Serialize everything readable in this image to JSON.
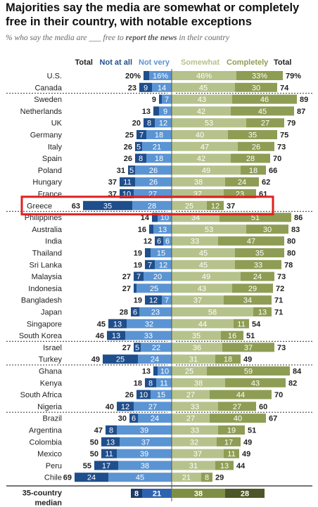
{
  "title": "Majorities say the media are somewhat or completely free in their country, with notable exceptions",
  "subtitle_pre": "% who say the media are ___ free to ",
  "subtitle_bold": "report the news",
  "subtitle_post": " in their country",
  "colors": {
    "not_at_all": "#1f4e8c",
    "not_very": "#5b94d3",
    "somewhat": "#b6c28c",
    "completely": "#8e9d54",
    "median_not_at_all": "#1b3a66",
    "median_not_very": "#2f63b0",
    "median_somewhat": "#7f8e45",
    "median_completely": "#4d5628",
    "highlight": "#e02020"
  },
  "chart_data": {
    "type": "bar",
    "headers": {
      "total_left": "Total",
      "not_at_all": "Not at all",
      "not_very": "Not very",
      "somewhat": "Somewhat",
      "completely": "Completely",
      "total_right": "Total"
    },
    "groups": [
      [
        {
          "country": "U.S.",
          "neg_total": "20%",
          "not_at_all": 4,
          "not_very": 16,
          "somewhat": 46,
          "completely": 33,
          "pos_total": "79%",
          "na_label": "",
          "nv_label": "16%",
          "sw_label": "46%",
          "cp_label": "33%"
        },
        {
          "country": "Canada",
          "neg_total": "23",
          "not_at_all": 9,
          "not_very": 14,
          "somewhat": 45,
          "completely": 30,
          "pos_total": "74",
          "na_label": "9",
          "nv_label": "14",
          "sw_label": "45",
          "cp_label": "30"
        }
      ],
      [
        {
          "country": "Sweden",
          "neg_total": "9",
          "not_at_all": 2,
          "not_very": 7,
          "somewhat": 43,
          "completely": 46,
          "pos_total": "89",
          "na_label": "",
          "nv_label": "7",
          "sw_label": "43",
          "cp_label": "46"
        },
        {
          "country": "Netherlands",
          "neg_total": "13",
          "not_at_all": 4,
          "not_very": 9,
          "somewhat": 42,
          "completely": 45,
          "pos_total": "87",
          "na_label": "",
          "nv_label": "9",
          "sw_label": "42",
          "cp_label": "45"
        },
        {
          "country": "UK",
          "neg_total": "20",
          "not_at_all": 8,
          "not_very": 12,
          "somewhat": 53,
          "completely": 27,
          "pos_total": "79",
          "na_label": "8",
          "nv_label": "12",
          "sw_label": "53",
          "cp_label": "27"
        },
        {
          "country": "Germany",
          "neg_total": "25",
          "not_at_all": 7,
          "not_very": 18,
          "somewhat": 40,
          "completely": 35,
          "pos_total": "75",
          "na_label": "7",
          "nv_label": "18",
          "sw_label": "40",
          "cp_label": "35"
        },
        {
          "country": "Italy",
          "neg_total": "26",
          "not_at_all": 5,
          "not_very": 21,
          "somewhat": 47,
          "completely": 26,
          "pos_total": "73",
          "na_label": "5",
          "nv_label": "21",
          "sw_label": "47",
          "cp_label": "26"
        },
        {
          "country": "Spain",
          "neg_total": "26",
          "not_at_all": 8,
          "not_very": 18,
          "somewhat": 42,
          "completely": 28,
          "pos_total": "70",
          "na_label": "8",
          "nv_label": "18",
          "sw_label": "42",
          "cp_label": "28"
        },
        {
          "country": "Poland",
          "neg_total": "31",
          "not_at_all": 5,
          "not_very": 26,
          "somewhat": 49,
          "completely": 18,
          "pos_total": "66",
          "na_label": "5",
          "nv_label": "26",
          "sw_label": "49",
          "cp_label": "18"
        },
        {
          "country": "Hungary",
          "neg_total": "37",
          "not_at_all": 11,
          "not_very": 26,
          "somewhat": 38,
          "completely": 24,
          "pos_total": "62",
          "na_label": "11",
          "nv_label": "26",
          "sw_label": "38",
          "cp_label": "24"
        },
        {
          "country": "France",
          "neg_total": "37",
          "not_at_all": 10,
          "not_very": 27,
          "somewhat": 37,
          "completely": 23,
          "pos_total": "61",
          "na_label": "10",
          "nv_label": "27",
          "sw_label": "37",
          "cp_label": "23"
        },
        {
          "country": "Greece",
          "neg_total": "63",
          "not_at_all": 35,
          "not_very": 28,
          "somewhat": 25,
          "completely": 12,
          "pos_total": "37",
          "na_label": "35",
          "nv_label": "28",
          "sw_label": "25",
          "cp_label": "12",
          "highlight": true
        }
      ],
      [
        {
          "country": "Philippines",
          "neg_total": "14",
          "not_at_all": 4,
          "not_very": 10,
          "somewhat": 34,
          "completely": 51,
          "pos_total": "86",
          "na_label": "",
          "nv_label": "10",
          "sw_label": "34",
          "cp_label": "51"
        },
        {
          "country": "Australia",
          "neg_total": "16",
          "not_at_all": 3,
          "not_very": 13,
          "somewhat": 53,
          "completely": 30,
          "pos_total": "83",
          "na_label": "",
          "nv_label": "13",
          "sw_label": "53",
          "cp_label": "30"
        },
        {
          "country": "India",
          "neg_total": "12",
          "not_at_all": 6,
          "not_very": 6,
          "somewhat": 33,
          "completely": 47,
          "pos_total": "80",
          "na_label": "6",
          "nv_label": "6",
          "sw_label": "33",
          "cp_label": "47"
        },
        {
          "country": "Thailand",
          "neg_total": "19",
          "not_at_all": 4,
          "not_very": 15,
          "somewhat": 45,
          "completely": 35,
          "pos_total": "80",
          "na_label": "",
          "nv_label": "15",
          "sw_label": "45",
          "cp_label": "35"
        },
        {
          "country": "Sri Lanka",
          "neg_total": "19",
          "not_at_all": 7,
          "not_very": 12,
          "somewhat": 45,
          "completely": 33,
          "pos_total": "78",
          "na_label": "7",
          "nv_label": "12",
          "sw_label": "45",
          "cp_label": "33"
        },
        {
          "country": "Malaysia",
          "neg_total": "27",
          "not_at_all": 7,
          "not_very": 20,
          "somewhat": 49,
          "completely": 24,
          "pos_total": "73",
          "na_label": "7",
          "nv_label": "20",
          "sw_label": "49",
          "cp_label": "24"
        },
        {
          "country": "Indonesia",
          "neg_total": "27",
          "not_at_all": 2,
          "not_very": 25,
          "somewhat": 43,
          "completely": 29,
          "pos_total": "72",
          "na_label": "",
          "nv_label": "25",
          "sw_label": "43",
          "cp_label": "29"
        },
        {
          "country": "Bangladesh",
          "neg_total": "19",
          "not_at_all": 12,
          "not_very": 7,
          "somewhat": 37,
          "completely": 34,
          "pos_total": "71",
          "na_label": "12",
          "nv_label": "7",
          "sw_label": "37",
          "cp_label": "34"
        },
        {
          "country": "Japan",
          "neg_total": "28",
          "not_at_all": 6,
          "not_very": 23,
          "somewhat": 58,
          "completely": 13,
          "pos_total": "71",
          "na_label": "6",
          "nv_label": "23",
          "sw_label": "58",
          "cp_label": "13"
        },
        {
          "country": "Singapore",
          "neg_total": "45",
          "not_at_all": 13,
          "not_very": 32,
          "somewhat": 44,
          "completely": 11,
          "pos_total": "54",
          "na_label": "13",
          "nv_label": "32",
          "sw_label": "44",
          "cp_label": "11"
        },
        {
          "country": "South Korea",
          "neg_total": "46",
          "not_at_all": 13,
          "not_very": 33,
          "somewhat": 35,
          "completely": 16,
          "pos_total": "51",
          "na_label": "13",
          "nv_label": "33",
          "sw_label": "35",
          "cp_label": "16"
        }
      ],
      [
        {
          "country": "Israel",
          "neg_total": "27",
          "not_at_all": 5,
          "not_very": 22,
          "somewhat": 36,
          "completely": 37,
          "pos_total": "73",
          "na_label": "5",
          "nv_label": "22",
          "sw_label": "36",
          "cp_label": "37"
        },
        {
          "country": "Turkey",
          "neg_total": "49",
          "not_at_all": 25,
          "not_very": 24,
          "somewhat": 31,
          "completely": 18,
          "pos_total": "49",
          "na_label": "25",
          "nv_label": "24",
          "sw_label": "31",
          "cp_label": "18"
        }
      ],
      [
        {
          "country": "Ghana",
          "neg_total": "13",
          "not_at_all": 3,
          "not_very": 10,
          "somewhat": 25,
          "completely": 59,
          "pos_total": "84",
          "na_label": "",
          "nv_label": "10",
          "sw_label": "25",
          "cp_label": "59"
        },
        {
          "country": "Kenya",
          "neg_total": "18",
          "not_at_all": 8,
          "not_very": 11,
          "somewhat": 38,
          "completely": 43,
          "pos_total": "82",
          "na_label": "8",
          "nv_label": "11",
          "sw_label": "38",
          "cp_label": "43"
        },
        {
          "country": "South Africa",
          "neg_total": "26",
          "not_at_all": 10,
          "not_very": 15,
          "somewhat": 27,
          "completely": 44,
          "pos_total": "70",
          "na_label": "10",
          "nv_label": "15",
          "sw_label": "27",
          "cp_label": "44"
        },
        {
          "country": "Nigeria",
          "neg_total": "40",
          "not_at_all": 12,
          "not_very": 27,
          "somewhat": 33,
          "completely": 27,
          "pos_total": "60",
          "na_label": "12",
          "nv_label": "27",
          "sw_label": "33",
          "cp_label": "27"
        }
      ],
      [
        {
          "country": "Brazil",
          "neg_total": "30",
          "not_at_all": 6,
          "not_very": 24,
          "somewhat": 27,
          "completely": 40,
          "pos_total": "67",
          "na_label": "6",
          "nv_label": "24",
          "sw_label": "27",
          "cp_label": "40"
        },
        {
          "country": "Argentina",
          "neg_total": "47",
          "not_at_all": 8,
          "not_very": 39,
          "somewhat": 33,
          "completely": 19,
          "pos_total": "51",
          "na_label": "8",
          "nv_label": "39",
          "sw_label": "33",
          "cp_label": "19"
        },
        {
          "country": "Colombia",
          "neg_total": "50",
          "not_at_all": 13,
          "not_very": 37,
          "somewhat": 32,
          "completely": 17,
          "pos_total": "49",
          "na_label": "13",
          "nv_label": "37",
          "sw_label": "32",
          "cp_label": "17"
        },
        {
          "country": "Mexico",
          "neg_total": "50",
          "not_at_all": 11,
          "not_very": 39,
          "somewhat": 37,
          "completely": 11,
          "pos_total": "49",
          "na_label": "11",
          "nv_label": "39",
          "sw_label": "37",
          "cp_label": "11"
        },
        {
          "country": "Peru",
          "neg_total": "55",
          "not_at_all": 17,
          "not_very": 38,
          "somewhat": 31,
          "completely": 13,
          "pos_total": "44",
          "na_label": "17",
          "nv_label": "38",
          "sw_label": "31",
          "cp_label": "13"
        },
        {
          "country": "Chile",
          "neg_total": "69",
          "not_at_all": 24,
          "not_very": 45,
          "somewhat": 21,
          "completely": 8,
          "pos_total": "29",
          "na_label": "24",
          "nv_label": "45",
          "sw_label": "21",
          "cp_label": "8"
        }
      ]
    ],
    "median": {
      "country_line1": "35-country",
      "country_line2": "median",
      "not_at_all": 8,
      "not_very": 21,
      "somewhat": 38,
      "completely": 28,
      "na_label": "8",
      "nv_label": "21",
      "sw_label": "38",
      "cp_label": "28"
    }
  }
}
